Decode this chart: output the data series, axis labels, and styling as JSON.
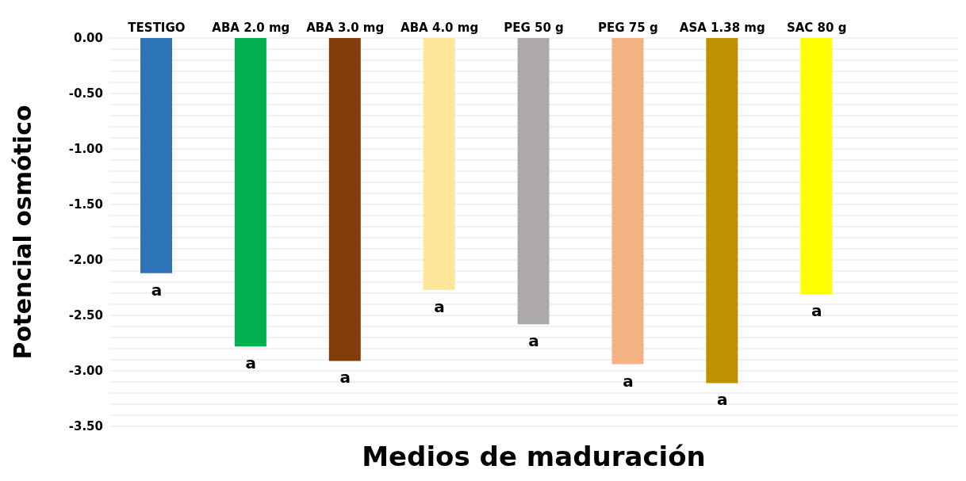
{
  "chart_data": {
    "type": "bar",
    "xlabel": "Medios de maduración",
    "ylabel": "Potencial osmótico",
    "categories": [
      "TESTIGO",
      "ABA 2.0 mg",
      "ABA 3.0 mg",
      "ABA 4.0 mg",
      "PEG 50 g",
      "PEG 75 g",
      "ASA 1.38 mg",
      "SAC 80 g",
      null
    ],
    "values": [
      -2.12,
      -2.78,
      -2.91,
      -2.27,
      -2.58,
      -2.94,
      -3.11,
      -2.31,
      null
    ],
    "colors": [
      "#2e75b6",
      "#00b050",
      "#843c0c",
      "#ffe699",
      "#aeaaaa",
      "#f4b183",
      "#bf9000",
      "#ffff00",
      "#cccccc"
    ],
    "ylim": [
      -3.5,
      0
    ],
    "yticks": [
      {
        "value": 0,
        "label": "0.00"
      },
      {
        "value": -0.1,
        "label": null
      },
      {
        "value": -0.2,
        "label": null
      },
      {
        "value": -0.3,
        "label": null
      },
      {
        "value": -0.4,
        "label": null
      },
      {
        "value": -0.5,
        "label": "-0.50"
      },
      {
        "value": -0.6,
        "label": null
      },
      {
        "value": -0.7,
        "label": null
      },
      {
        "value": -0.8,
        "label": null
      },
      {
        "value": -0.9,
        "label": null
      },
      {
        "value": -1,
        "label": "-1.00"
      },
      {
        "value": -1.1,
        "label": null
      },
      {
        "value": -1.2,
        "label": null
      },
      {
        "value": -1.3,
        "label": null
      },
      {
        "value": -1.4,
        "label": null
      },
      {
        "value": -1.5,
        "label": "-1.50"
      },
      {
        "value": -1.6,
        "label": null
      },
      {
        "value": -1.7,
        "label": null
      },
      {
        "value": -1.8,
        "label": null
      },
      {
        "value": -1.9,
        "label": null
      },
      {
        "value": -2,
        "label": "-2.00"
      },
      {
        "value": -2.1,
        "label": null
      },
      {
        "value": -2.2,
        "label": null
      },
      {
        "value": -2.3,
        "label": null
      },
      {
        "value": -2.4,
        "label": null
      },
      {
        "value": -2.5,
        "label": "-2.50"
      },
      {
        "value": -2.6,
        "label": null
      },
      {
        "value": -2.7,
        "label": null
      },
      {
        "value": -2.8,
        "label": null
      },
      {
        "value": -2.9,
        "label": null
      },
      {
        "value": -3,
        "label": "-3.00"
      },
      {
        "value": -3.1,
        "label": null
      },
      {
        "value": -3.2,
        "label": null
      },
      {
        "value": -3.3,
        "label": null
      },
      {
        "value": -3.4,
        "label": null
      },
      {
        "value": -3.5,
        "label": "-3.50"
      }
    ],
    "grid": "y",
    "annotations": [
      {
        "text": "a",
        "x": "TESTIGO",
        "y": -2.12
      },
      {
        "text": "a",
        "x": "ABA 2.0 mg",
        "y": -2.78
      },
      {
        "text": "a",
        "x": "ABA 3.0 mg",
        "y": -2.91
      },
      {
        "text": "a",
        "x": "ABA 4.0 mg",
        "y": -2.27
      },
      {
        "text": "a",
        "x": "PEG 50 g",
        "y": -2.58
      },
      {
        "text": "a",
        "x": "PEG 75 g",
        "y": -2.94
      },
      {
        "text": "a",
        "x": "ASA 1.38 mg",
        "y": -3.11
      },
      {
        "text": "a",
        "x": "SAC 80 g",
        "y": -2.31
      }
    ]
  }
}
